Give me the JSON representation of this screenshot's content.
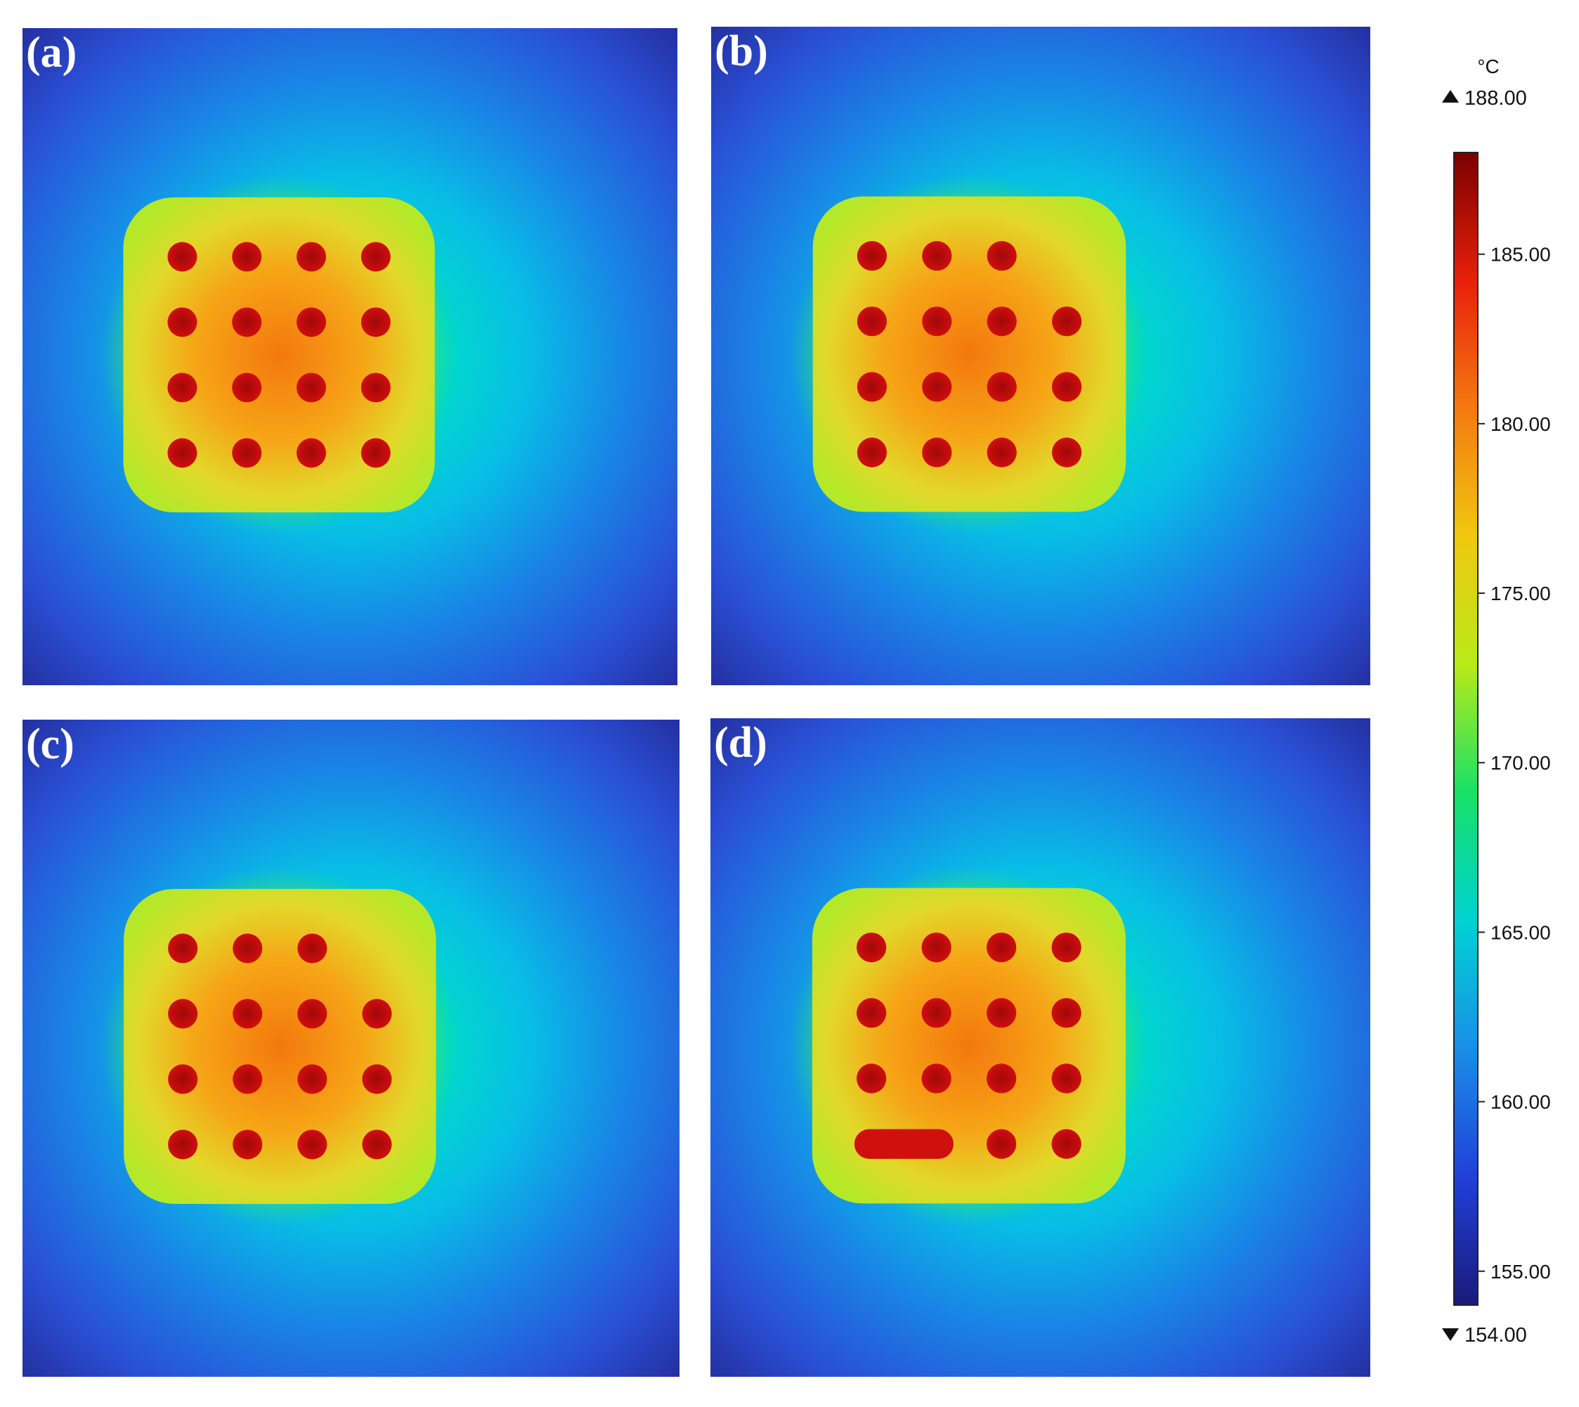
{
  "panels": [
    {
      "label": "(a)",
      "hotspots": [
        [
          1,
          1,
          1,
          1
        ],
        [
          1,
          1,
          1,
          1
        ],
        [
          1,
          1,
          1,
          1
        ],
        [
          1,
          1,
          1,
          1
        ]
      ],
      "merged_pairs": []
    },
    {
      "label": "(b)",
      "hotspots": [
        [
          1,
          1,
          1,
          0
        ],
        [
          1,
          1,
          1,
          1
        ],
        [
          1,
          1,
          1,
          1
        ],
        [
          1,
          1,
          1,
          1
        ]
      ],
      "merged_pairs": []
    },
    {
      "label": "(c)",
      "hotspots": [
        [
          1,
          1,
          1,
          0
        ],
        [
          1,
          1,
          1,
          1
        ],
        [
          1,
          1,
          1,
          1
        ],
        [
          1,
          1,
          1,
          1
        ]
      ],
      "merged_pairs": []
    },
    {
      "label": "(d)",
      "hotspots": [
        [
          1,
          1,
          1,
          1
        ],
        [
          1,
          1,
          1,
          1
        ],
        [
          1,
          1,
          1,
          1
        ],
        [
          1,
          1,
          1,
          1
        ]
      ],
      "merged_pairs": [
        {
          "row": 3,
          "from_col": 0,
          "to_col": 1
        }
      ]
    }
  ],
  "colorbar": {
    "unit": "°C",
    "max_label": "188.00",
    "min_label": "154.00",
    "max": 188,
    "min": 154,
    "ticks": [
      "185.00",
      "180.00",
      "175.00",
      "170.00",
      "165.00",
      "160.00",
      "155.00"
    ],
    "tick_values": [
      185,
      180,
      175,
      170,
      165,
      160,
      155
    ],
    "colors": [
      "#1a1a7a",
      "#2040d8",
      "#1a8ee8",
      "#00d2d2",
      "#18e068",
      "#b8ea18",
      "#f0c810",
      "#f47a10",
      "#e8200a",
      "#7a0000"
    ]
  }
}
